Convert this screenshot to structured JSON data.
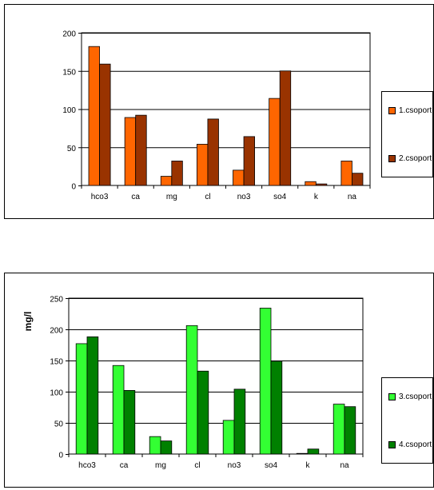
{
  "chart_data": [
    {
      "type": "bar",
      "categories": [
        "hco3",
        "ca",
        "mg",
        "cl",
        "no3",
        "so4",
        "k",
        "na"
      ],
      "series": [
        {
          "name": "1.csoport",
          "color": "#ff6600",
          "values": [
            182,
            89,
            12,
            54,
            20,
            114,
            5,
            32
          ]
        },
        {
          "name": "2.csoport",
          "color": "#993300",
          "values": [
            159,
            92,
            32,
            87,
            64,
            150,
            2,
            16
          ]
        }
      ],
      "yticks": [
        "0",
        "50",
        "100",
        "150",
        "200"
      ],
      "ylim": [
        0,
        200
      ],
      "ylabel": "",
      "grid": true,
      "legend_position": "right"
    },
    {
      "type": "bar",
      "categories": [
        "hco3",
        "ca",
        "mg",
        "cl",
        "no3",
        "so4",
        "k",
        "na"
      ],
      "series": [
        {
          "name": "3.csoport",
          "color": "#33ff33",
          "values": [
            177,
            142,
            28,
            206,
            54,
            234,
            1,
            80
          ]
        },
        {
          "name": "4.csoport",
          "color": "#008000",
          "values": [
            188,
            102,
            21,
            133,
            104,
            149,
            8,
            76
          ]
        }
      ],
      "yticks": [
        "0",
        "50",
        "100",
        "150",
        "200",
        "250"
      ],
      "ylim": [
        0,
        250
      ],
      "ylabel": "mg/l",
      "grid": true,
      "legend_position": "right"
    }
  ]
}
